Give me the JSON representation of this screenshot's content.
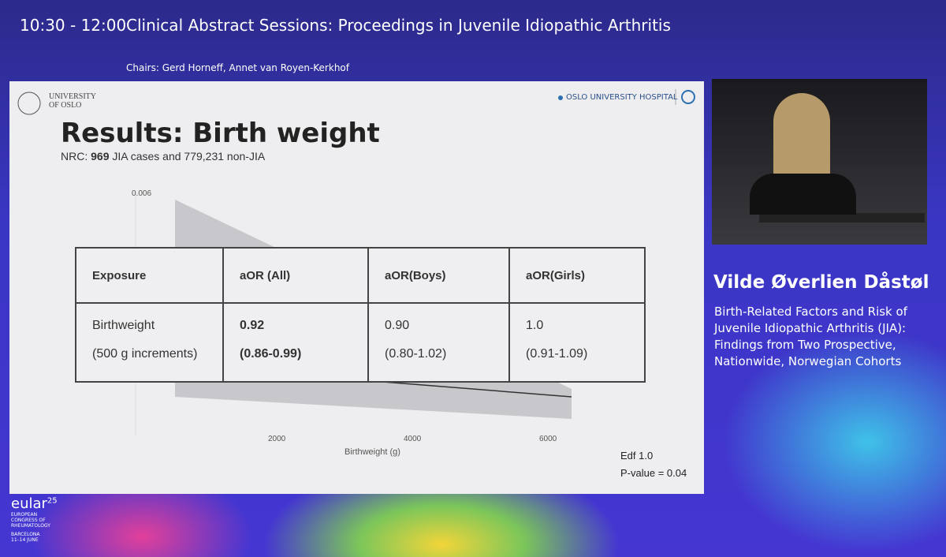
{
  "header": {
    "time": "10:30 - 12:00",
    "title": "Clinical Abstract Sessions: Proceedings in Juvenile Idiopathic Arthritis",
    "chairs": "Chairs: Gerd Horneff, Annet van Royen-Kerkhof"
  },
  "slide": {
    "logo_left": [
      "UNIVERSITY",
      "OF OSLO"
    ],
    "logo_right": "OSLO UNIVERSITY HOSPITAL",
    "title": "Results: Birth weight",
    "subtitle": {
      "prefix": "NRC:",
      "bold": "969",
      "suffix": "JIA cases and 779,231 non-JIA"
    },
    "plot": {
      "y_tick": "0.006",
      "x_ticks": [
        "2000",
        "4000",
        "6000"
      ],
      "x_label": "Birthweight (g)"
    },
    "table": {
      "header": [
        "Exposure",
        "aOR (All)",
        "aOR(Boys)",
        "aOR(Girls)"
      ],
      "rows": [
        [
          [
            "Birthweight",
            "(500 g increments)"
          ],
          [
            "0.92",
            "(0.86-0.99)"
          ],
          [
            "0.90",
            "(0.80-1.02)"
          ],
          [
            "1.0",
            "(0.91-1.09)"
          ]
        ]
      ]
    },
    "footer": [
      "Edf 1.0",
      "P-value = 0.04"
    ]
  },
  "speaker": {
    "name": "Vilde Øverlien Dåstøl",
    "talk": [
      "Birth-Related Factors and Risk of",
      "Juvenile Idiopathic Arthritis (JIA):",
      "Findings from Two Prospective,",
      "Nationwide, Norwegian Cohorts"
    ]
  },
  "event": {
    "brand": "eular",
    "edition": "25",
    "lines": [
      "EUROPEAN",
      "CONGRESS OF",
      "RHEUMATOLOGY"
    ],
    "place": [
      "BARCELONA",
      "11–14 JUNE"
    ]
  }
}
